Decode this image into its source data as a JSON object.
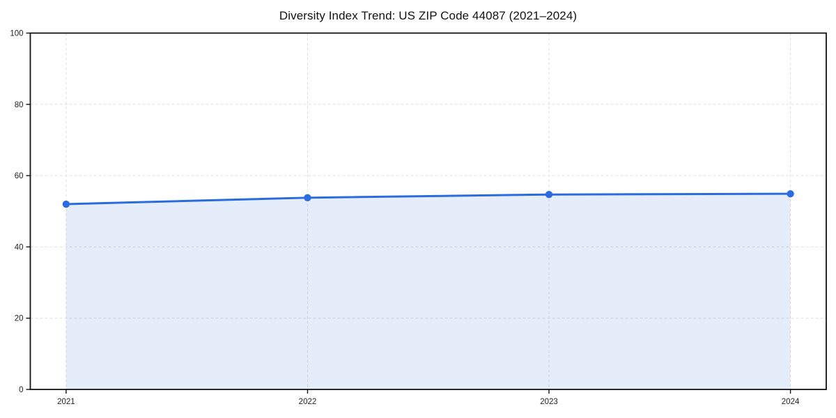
{
  "chart_data": {
    "type": "area",
    "title": "Diversity Index Trend: US ZIP Code 44087 (2021–2024)",
    "xlabel": "",
    "ylabel": "",
    "categories": [
      "2021",
      "2022",
      "2023",
      "2024"
    ],
    "series": [
      {
        "name": "Diversity Index",
        "values": [
          52.0,
          53.8,
          54.7,
          54.9
        ]
      }
    ],
    "ylim": [
      0,
      100
    ],
    "yticks": [
      0,
      20,
      40,
      60,
      80,
      100
    ],
    "grid": true,
    "grid_style": "dashed",
    "legend_position": "none",
    "colors": {
      "line": "#2a6ce0",
      "marker": "#2a6ce0",
      "fill": "rgba(42, 108, 224, 0.12)",
      "grid": "#e0e0e0",
      "spine": "#111111",
      "tick_label": "#222222",
      "background": "#ffffff"
    }
  }
}
